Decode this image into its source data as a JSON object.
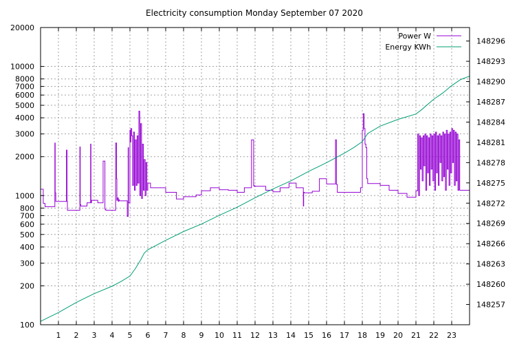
{
  "chart_data": {
    "type": "line",
    "title": "Electricity consumption Monday September 07 2020",
    "xlabel": "",
    "ylabel": "",
    "y2label": "",
    "grid": true,
    "legend_position": "top-right",
    "xlim": [
      0,
      24
    ],
    "ylim": [
      100,
      20000
    ],
    "yscale": "log",
    "y2lim": [
      148254,
      148298
    ],
    "x_ticks": [
      1,
      2,
      3,
      4,
      5,
      6,
      7,
      8,
      9,
      10,
      11,
      12,
      13,
      14,
      15,
      16,
      17,
      18,
      19,
      20,
      21,
      22,
      23
    ],
    "y_ticks": [
      {
        "value": 100,
        "label": "100"
      },
      {
        "value": 200,
        "label": "200"
      },
      {
        "value": 300,
        "label": "300"
      },
      {
        "value": 400,
        "label": "400"
      },
      {
        "value": 500,
        "label": "500"
      },
      {
        "value": 600,
        "label": "600"
      },
      {
        "value": 700,
        "label": "700"
      },
      {
        "value": 800,
        "label": "800"
      },
      {
        "value": 1000,
        "label": "1000"
      },
      {
        "value": 2000,
        "label": "2000"
      },
      {
        "value": 3000,
        "label": "3000"
      },
      {
        "value": 4000,
        "label": "4000"
      },
      {
        "value": 5000,
        "label": "5000"
      },
      {
        "value": 6000,
        "label": "6000"
      },
      {
        "value": 7000,
        "label": "7000"
      },
      {
        "value": 8000,
        "label": "8000"
      },
      {
        "value": 10000,
        "label": "10000"
      },
      {
        "value": 20000,
        "label": "20000"
      }
    ],
    "y2_ticks": [
      148257,
      148260,
      148263,
      148266,
      148269,
      148272,
      148275,
      148278,
      148281,
      148284,
      148287,
      148290,
      148293,
      148296
    ],
    "series": [
      {
        "name": "Power W",
        "color": "#9400d3",
        "axis": "y",
        "step": true,
        "x": [
          0,
          0.15,
          0.25,
          0.75,
          0.8,
          0.82,
          0.85,
          1.4,
          1.45,
          1.48,
          1.5,
          2.0,
          2.2,
          2.22,
          2.25,
          2.6,
          2.8,
          2.82,
          2.85,
          3.2,
          3.5,
          3.6,
          3.62,
          3.65,
          4.2,
          4.25,
          4.27,
          4.3,
          4.35,
          4.37,
          4.4,
          4.85,
          4.9,
          4.92,
          5.0,
          5.02,
          5.05,
          5.1,
          5.15,
          5.2,
          5.25,
          5.3,
          5.35,
          5.4,
          5.45,
          5.5,
          5.55,
          5.6,
          5.65,
          5.7,
          5.75,
          5.8,
          5.85,
          5.9,
          5.95,
          6.0,
          6.05,
          6.1,
          6.15,
          6.2,
          6.25,
          6.3,
          6.35,
          6.4,
          6.5,
          7.0,
          7.6,
          8.0,
          8.7,
          9.0,
          9.5,
          10.0,
          10.5,
          11.0,
          11.4,
          11.8,
          11.92,
          11.94,
          11.96,
          12.0,
          12.6,
          13.0,
          13.4,
          13.9,
          14.3,
          14.7,
          14.72,
          14.75,
          15.2,
          15.6,
          16.0,
          16.5,
          16.55,
          16.6,
          17.5,
          17.9,
          18.0,
          18.05,
          18.1,
          18.15,
          18.2,
          18.25,
          18.3,
          18.35,
          19.0,
          19.5,
          20.0,
          20.5,
          21.0,
          21.1,
          21.15,
          21.2,
          21.25,
          21.3,
          21.35,
          21.4,
          21.45,
          21.5,
          21.55,
          21.6,
          21.65,
          21.7,
          21.75,
          21.8,
          21.85,
          21.9,
          21.95,
          22.0,
          22.05,
          22.1,
          22.15,
          22.2,
          22.25,
          22.3,
          22.35,
          22.4,
          22.45,
          22.5,
          22.55,
          22.6,
          22.65,
          22.7,
          22.75,
          22.8,
          22.85,
          22.9,
          22.95,
          23.0,
          23.05,
          23.1,
          23.15,
          23.2,
          23.25,
          23.3,
          23.35,
          23.4,
          23.45,
          23.9,
          24.0
        ],
        "values": [
          1120,
          870,
          820,
          820,
          2550,
          1050,
          900,
          900,
          2250,
          900,
          770,
          770,
          2380,
          850,
          830,
          880,
          2500,
          880,
          920,
          880,
          1850,
          790,
          780,
          770,
          2550,
          1350,
          920,
          960,
          900,
          930,
          910,
          690,
          2350,
          880,
          3200,
          2600,
          3300,
          2900,
          1200,
          3100,
          1100,
          2700,
          1200,
          2900,
          1250,
          4500,
          1000,
          3600,
          950,
          2500,
          1100,
          1900,
          1000,
          1800,
          1100,
          1250,
          1250,
          1250,
          1150,
          1150,
          1150,
          1150,
          1150,
          1150,
          1150,
          1060,
          940,
          980,
          1010,
          1090,
          1150,
          1110,
          1100,
          1060,
          1150,
          2700,
          1200,
          1180,
          1190,
          1180,
          1100,
          1070,
          1150,
          1250,
          1150,
          830,
          1060,
          1050,
          1080,
          1350,
          1230,
          2700,
          1220,
          1060,
          1060,
          1150,
          3200,
          4300,
          3300,
          2500,
          2350,
          1350,
          1240,
          1240,
          1200,
          1100,
          1040,
          970,
          1090,
          3000,
          1000,
          2900,
          1600,
          2800,
          1300,
          2900,
          1700,
          3000,
          1100,
          2900,
          1500,
          2800,
          1200,
          3000,
          1600,
          2900,
          1300,
          3000,
          1100,
          3100,
          1500,
          2900,
          1200,
          3000,
          1800,
          2900,
          1300,
          3100,
          1400,
          3000,
          1100,
          3200,
          1600,
          3000,
          1200,
          3100,
          1500,
          3300,
          1800,
          3200,
          1200,
          3100,
          1300,
          3000,
          1100,
          2700,
          1100,
          1100,
          1000
        ]
      },
      {
        "name": "Energy KWh",
        "color": "#009e73",
        "axis": "y2",
        "step": false,
        "x": [
          0,
          1,
          2,
          3,
          4,
          4.5,
          5,
          5.3,
          5.6,
          5.8,
          6,
          7,
          8,
          9,
          10,
          11,
          12,
          13,
          14,
          15,
          16,
          17,
          17.5,
          18,
          18.3,
          19,
          20,
          21,
          21.3,
          22,
          22.5,
          23,
          23.5,
          24
        ],
        "values": [
          148254.5,
          148255.8,
          148257.3,
          148258.6,
          148259.7,
          148260.4,
          148261.2,
          148262.3,
          148263.6,
          148264.6,
          148265.1,
          148266.5,
          148267.8,
          148268.9,
          148270.2,
          148271.4,
          148272.8,
          148274.1,
          148275.3,
          148276.7,
          148278.0,
          148279.4,
          148280.2,
          148281.1,
          148282.3,
          148283.4,
          148284.4,
          148285.2,
          148285.8,
          148287.4,
          148288.3,
          148289.4,
          148290.3,
          148290.8
        ]
      }
    ]
  }
}
